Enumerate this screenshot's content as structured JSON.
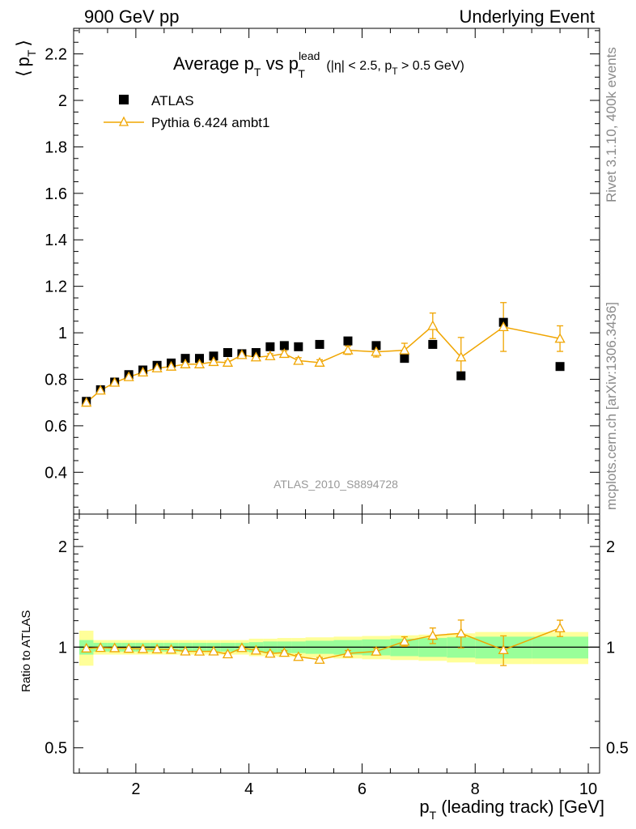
{
  "header": {
    "left": "900 GeV pp",
    "right": "Underlying Event"
  },
  "side_labels": {
    "rivet": "Rivet 3.1.10,  400k events",
    "mcplots": "mcplots.cern.ch [arXiv:1306.3436]"
  },
  "colors": {
    "mc": "#f0a500",
    "data": "#000000",
    "band_inner": "#99ff99",
    "band_outer": "#ffff99",
    "watermark": "#999999"
  },
  "chart_data": [
    {
      "type": "scatter",
      "panel": "main",
      "title": "Average pT vs pTlead (|η| < 2.5, pT > 0.5 GeV)",
      "title_parts": {
        "a": "Average p",
        "a_sub": "T",
        "b": " vs p",
        "b_sup": "lead",
        "b_sub": "T",
        "c": " (|η| < 2.5, p",
        "c_sub": "T",
        "d": " > 0.5 GeV)"
      },
      "ylabel": "⟨ pT ⟩",
      "ylabel_parts": {
        "open": "⟨",
        "p": "p",
        "sub": "T",
        "close": "⟩"
      },
      "xlim": [
        0.9,
        10.2
      ],
      "ylim": [
        0.22,
        2.31
      ],
      "yticks": [
        0.4,
        0.6,
        0.8,
        1,
        1.2,
        1.4,
        1.6,
        1.8,
        2,
        2.2
      ],
      "ytick_labels": [
        "0.4",
        "0.6",
        "0.8",
        "1",
        "1.2",
        "1.4",
        "1.6",
        "1.8",
        "2",
        "2.2"
      ],
      "watermark": "ATLAS_2010_S8894728",
      "legend_position": "top-left",
      "series": [
        {
          "name": "ATLAS",
          "marker": "square",
          "x": [
            1.125,
            1.375,
            1.625,
            1.875,
            2.125,
            2.375,
            2.625,
            2.875,
            3.125,
            3.375,
            3.625,
            3.875,
            4.125,
            4.375,
            4.625,
            4.875,
            5.25,
            5.75,
            6.25,
            6.75,
            7.25,
            7.75,
            8.5,
            9.5
          ],
          "y": [
            0.705,
            0.755,
            0.788,
            0.82,
            0.84,
            0.86,
            0.87,
            0.89,
            0.89,
            0.9,
            0.915,
            0.91,
            0.915,
            0.94,
            0.945,
            0.94,
            0.95,
            0.965,
            0.945,
            0.89,
            0.95,
            0.815,
            1.045,
            0.855
          ]
        },
        {
          "name": "Pythia 6.424 ambt1",
          "marker": "open-triangle",
          "x": [
            1.125,
            1.375,
            1.625,
            1.875,
            2.125,
            2.375,
            2.625,
            2.875,
            3.125,
            3.375,
            3.625,
            3.875,
            4.125,
            4.375,
            4.625,
            4.875,
            5.25,
            5.75,
            6.25,
            6.75,
            7.25,
            7.75,
            8.5,
            9.5
          ],
          "y": [
            0.7,
            0.752,
            0.786,
            0.81,
            0.83,
            0.848,
            0.855,
            0.865,
            0.865,
            0.875,
            0.872,
            0.905,
            0.895,
            0.9,
            0.91,
            0.88,
            0.872,
            0.925,
            0.918,
            0.925,
            1.03,
            0.895,
            1.025,
            0.975
          ],
          "yerr": [
            0.005,
            0.005,
            0.005,
            0.005,
            0.005,
            0.005,
            0.005,
            0.006,
            0.006,
            0.006,
            0.007,
            0.008,
            0.009,
            0.01,
            0.012,
            0.013,
            0.012,
            0.018,
            0.022,
            0.03,
            0.055,
            0.085,
            0.105,
            0.055
          ]
        }
      ]
    },
    {
      "type": "scatter",
      "panel": "ratio",
      "xlabel": "pT (leading track) [GeV]",
      "xlabel_parts": {
        "p": "p",
        "sub": "T",
        "rest": " (leading track) [GeV]"
      },
      "ylabel": "Ratio to ATLAS",
      "xlim": [
        0.9,
        10.2
      ],
      "ylim": [
        0.42,
        2.5
      ],
      "log_y": true,
      "xticks": [
        2,
        4,
        6,
        8,
        10
      ],
      "xtick_labels": [
        "2",
        "4",
        "6",
        "8",
        "10"
      ],
      "yticks": [
        0.5,
        1,
        2
      ],
      "ytick_labels": [
        "0.5",
        "1",
        "2"
      ],
      "band_edges": [
        1,
        1.25,
        1.5,
        1.75,
        2,
        2.25,
        2.5,
        2.75,
        3,
        3.25,
        3.5,
        3.75,
        4,
        4.25,
        4.5,
        4.75,
        5,
        5.5,
        6,
        6.5,
        7,
        7.5,
        8,
        9,
        10
      ],
      "band_inner": [
        0.05,
        0.03,
        0.03,
        0.03,
        0.03,
        0.03,
        0.03,
        0.03,
        0.03,
        0.03,
        0.03,
        0.03,
        0.035,
        0.04,
        0.04,
        0.04,
        0.045,
        0.05,
        0.055,
        0.06,
        0.065,
        0.07,
        0.075,
        0.075
      ],
      "band_outer": [
        0.12,
        0.05,
        0.05,
        0.05,
        0.05,
        0.05,
        0.05,
        0.05,
        0.05,
        0.05,
        0.05,
        0.05,
        0.06,
        0.06,
        0.065,
        0.065,
        0.07,
        0.075,
        0.08,
        0.085,
        0.09,
        0.1,
        0.11,
        0.11
      ],
      "series": [
        {
          "name": "Pythia 6.424 ambt1",
          "x": [
            1.125,
            1.375,
            1.625,
            1.875,
            2.125,
            2.375,
            2.625,
            2.875,
            3.125,
            3.375,
            3.625,
            3.875,
            4.125,
            4.375,
            4.625,
            4.875,
            5.25,
            5.75,
            6.25,
            6.75,
            7.25,
            7.75,
            8.5,
            9.5
          ],
          "y": [
            0.992,
            0.996,
            0.994,
            0.99,
            0.988,
            0.986,
            0.984,
            0.972,
            0.971,
            0.972,
            0.953,
            0.995,
            0.978,
            0.957,
            0.963,
            0.936,
            0.918,
            0.958,
            0.971,
            1.04,
            1.083,
            1.1,
            0.981,
            1.14
          ],
          "yerr": [
            0.007,
            0.007,
            0.007,
            0.007,
            0.007,
            0.007,
            0.007,
            0.007,
            0.007,
            0.007,
            0.008,
            0.009,
            0.01,
            0.011,
            0.013,
            0.014,
            0.013,
            0.019,
            0.023,
            0.034,
            0.058,
            0.105,
            0.1,
            0.064
          ]
        }
      ]
    }
  ]
}
